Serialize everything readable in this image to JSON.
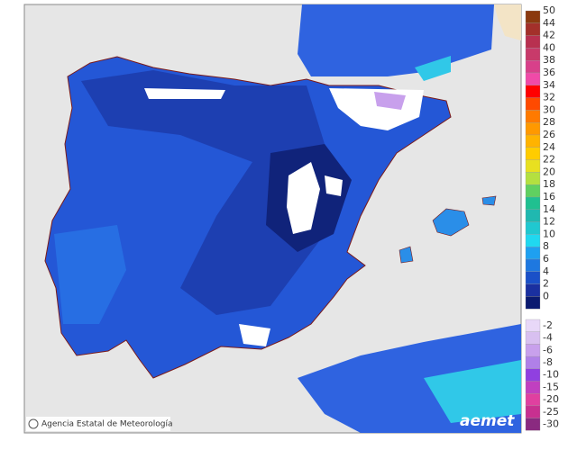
{
  "credit": "Agencia Estatal de Meteorología",
  "logo": "aemet",
  "legend": {
    "upper": [
      {
        "value": 50,
        "color": "#8b3a0f"
      },
      {
        "value": 44,
        "color": "#a3302a"
      },
      {
        "value": 42,
        "color": "#b83050"
      },
      {
        "value": 40,
        "color": "#c83a6a"
      },
      {
        "value": 38,
        "color": "#d8408a"
      },
      {
        "value": 36,
        "color": "#f04aa8"
      },
      {
        "value": 34,
        "color": "#ff0000"
      },
      {
        "value": 32,
        "color": "#ff4a00"
      },
      {
        "value": 30,
        "color": "#ff7a00"
      },
      {
        "value": 28,
        "color": "#ff9900"
      },
      {
        "value": 26,
        "color": "#ffb300"
      },
      {
        "value": 24,
        "color": "#ffcc00"
      },
      {
        "value": 22,
        "color": "#e8e020"
      },
      {
        "value": 20,
        "color": "#b4e040"
      },
      {
        "value": 18,
        "color": "#60d060"
      },
      {
        "value": 16,
        "color": "#20c090"
      },
      {
        "value": 14,
        "color": "#20b8b0"
      },
      {
        "value": 12,
        "color": "#20c8d0"
      },
      {
        "value": 10,
        "color": "#20d8f0"
      },
      {
        "value": 8,
        "color": "#1ea0f0"
      },
      {
        "value": 6,
        "color": "#1e78e0"
      },
      {
        "value": 4,
        "color": "#1a50c8"
      },
      {
        "value": 2,
        "color": "#1a30a0"
      },
      {
        "value": 0,
        "color": "#0a1a70"
      }
    ],
    "lower": [
      {
        "value": -2,
        "color": "#e8d8f8"
      },
      {
        "value": -4,
        "color": "#d8c0f0"
      },
      {
        "value": -6,
        "color": "#c8a0ec"
      },
      {
        "value": -8,
        "color": "#b080e8"
      },
      {
        "value": -10,
        "color": "#9040e0"
      },
      {
        "value": -15,
        "color": "#c040c0"
      },
      {
        "value": -20,
        "color": "#e040a0"
      },
      {
        "value": -25,
        "color": "#c83090"
      },
      {
        "value": -30,
        "color": "#8a2a80"
      }
    ]
  }
}
